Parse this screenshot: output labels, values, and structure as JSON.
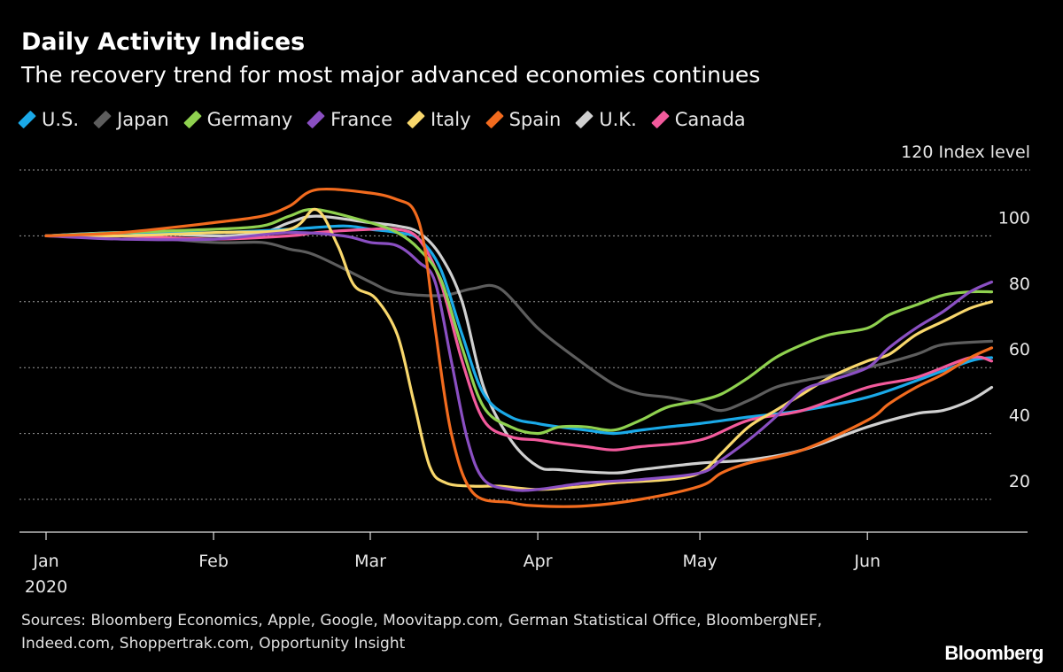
{
  "chart_data": {
    "type": "line",
    "title": "Daily Activity Indices",
    "subtitle": "The recovery trend for most major advanced economies continues",
    "ylabel": "Index level",
    "ylim": [
      10,
      120
    ],
    "yticks": [
      20,
      40,
      60,
      80,
      100,
      120
    ],
    "x_axis": {
      "range": [
        "2020-01-01",
        "2020-06-25"
      ],
      "ticks": [
        {
          "date": "2020-01-01",
          "label": "Jan"
        },
        {
          "date": "2020-02-01",
          "label": "Feb"
        },
        {
          "date": "2020-03-01",
          "label": "Mar"
        },
        {
          "date": "2020-04-01",
          "label": "Apr"
        },
        {
          "date": "2020-05-01",
          "label": "May"
        },
        {
          "date": "2020-06-01",
          "label": "Jun"
        }
      ],
      "year_label": "2020"
    },
    "grid": true,
    "legend_position": "top-left",
    "series": [
      {
        "name": "U.S.",
        "color": "#1aa9e8",
        "points": [
          [
            "2020-01-01",
            100
          ],
          [
            "2020-01-15",
            101
          ],
          [
            "2020-02-01",
            101
          ],
          [
            "2020-02-15",
            102
          ],
          [
            "2020-02-25",
            103
          ],
          [
            "2020-03-01",
            102
          ],
          [
            "2020-03-06",
            101
          ],
          [
            "2020-03-10",
            99
          ],
          [
            "2020-03-14",
            90
          ],
          [
            "2020-03-18",
            70
          ],
          [
            "2020-03-22",
            52
          ],
          [
            "2020-03-27",
            45
          ],
          [
            "2020-04-01",
            43
          ],
          [
            "2020-04-05",
            42
          ],
          [
            "2020-04-10",
            41
          ],
          [
            "2020-04-15",
            40
          ],
          [
            "2020-04-20",
            41
          ],
          [
            "2020-04-25",
            42
          ],
          [
            "2020-05-01",
            43
          ],
          [
            "2020-05-10",
            45
          ],
          [
            "2020-05-20",
            47
          ],
          [
            "2020-06-01",
            51
          ],
          [
            "2020-06-10",
            56
          ],
          [
            "2020-06-20",
            62
          ],
          [
            "2020-06-24",
            63
          ]
        ]
      },
      {
        "name": "Japan",
        "color": "#5d5d5d",
        "points": [
          [
            "2020-01-01",
            100
          ],
          [
            "2020-01-15",
            100
          ],
          [
            "2020-02-01",
            98
          ],
          [
            "2020-02-10",
            98
          ],
          [
            "2020-02-15",
            96
          ],
          [
            "2020-02-20",
            94
          ],
          [
            "2020-03-01",
            86
          ],
          [
            "2020-03-05",
            83
          ],
          [
            "2020-03-10",
            82
          ],
          [
            "2020-03-15",
            82
          ],
          [
            "2020-03-20",
            84
          ],
          [
            "2020-03-25",
            84
          ],
          [
            "2020-04-01",
            72
          ],
          [
            "2020-04-08",
            63
          ],
          [
            "2020-04-15",
            55
          ],
          [
            "2020-04-20",
            52
          ],
          [
            "2020-04-25",
            51
          ],
          [
            "2020-05-01",
            49
          ],
          [
            "2020-05-05",
            47
          ],
          [
            "2020-05-10",
            50
          ],
          [
            "2020-05-15",
            54
          ],
          [
            "2020-05-20",
            56
          ],
          [
            "2020-06-01",
            60
          ],
          [
            "2020-06-10",
            64
          ],
          [
            "2020-06-15",
            67
          ],
          [
            "2020-06-24",
            68
          ]
        ]
      },
      {
        "name": "Germany",
        "color": "#8fd14f",
        "points": [
          [
            "2020-01-01",
            100
          ],
          [
            "2020-01-15",
            101
          ],
          [
            "2020-02-01",
            102
          ],
          [
            "2020-02-10",
            103
          ],
          [
            "2020-02-15",
            106
          ],
          [
            "2020-02-20",
            108
          ],
          [
            "2020-03-01",
            104
          ],
          [
            "2020-03-06",
            101
          ],
          [
            "2020-03-10",
            96
          ],
          [
            "2020-03-14",
            87
          ],
          [
            "2020-03-18",
            66
          ],
          [
            "2020-03-22",
            48
          ],
          [
            "2020-03-27",
            42
          ],
          [
            "2020-04-01",
            40
          ],
          [
            "2020-04-05",
            42
          ],
          [
            "2020-04-10",
            42
          ],
          [
            "2020-04-15",
            41
          ],
          [
            "2020-04-20",
            44
          ],
          [
            "2020-04-25",
            48
          ],
          [
            "2020-05-01",
            50
          ],
          [
            "2020-05-05",
            52
          ],
          [
            "2020-05-10",
            57
          ],
          [
            "2020-05-15",
            63
          ],
          [
            "2020-05-20",
            67
          ],
          [
            "2020-05-25",
            70
          ],
          [
            "2020-06-01",
            72
          ],
          [
            "2020-06-05",
            76
          ],
          [
            "2020-06-10",
            79
          ],
          [
            "2020-06-15",
            82
          ],
          [
            "2020-06-20",
            83
          ],
          [
            "2020-06-24",
            83
          ]
        ]
      },
      {
        "name": "France",
        "color": "#8a4fc2",
        "points": [
          [
            "2020-01-01",
            100
          ],
          [
            "2020-01-15",
            99
          ],
          [
            "2020-02-01",
            99
          ],
          [
            "2020-02-15",
            101
          ],
          [
            "2020-02-25",
            100
          ],
          [
            "2020-03-01",
            98
          ],
          [
            "2020-03-06",
            97
          ],
          [
            "2020-03-10",
            92
          ],
          [
            "2020-03-13",
            86
          ],
          [
            "2020-03-16",
            62
          ],
          [
            "2020-03-19",
            38
          ],
          [
            "2020-03-22",
            26
          ],
          [
            "2020-03-27",
            23
          ],
          [
            "2020-04-01",
            23
          ],
          [
            "2020-04-10",
            25
          ],
          [
            "2020-04-20",
            26
          ],
          [
            "2020-05-01",
            28
          ],
          [
            "2020-05-05",
            32
          ],
          [
            "2020-05-10",
            38
          ],
          [
            "2020-05-15",
            45
          ],
          [
            "2020-05-20",
            53
          ],
          [
            "2020-05-25",
            56
          ],
          [
            "2020-06-01",
            60
          ],
          [
            "2020-06-05",
            66
          ],
          [
            "2020-06-10",
            72
          ],
          [
            "2020-06-15",
            77
          ],
          [
            "2020-06-20",
            83
          ],
          [
            "2020-06-24",
            86
          ]
        ]
      },
      {
        "name": "Italy",
        "color": "#f8d76c",
        "points": [
          [
            "2020-01-01",
            100
          ],
          [
            "2020-01-15",
            100
          ],
          [
            "2020-02-01",
            101
          ],
          [
            "2020-02-15",
            102
          ],
          [
            "2020-02-20",
            108
          ],
          [
            "2020-02-24",
            97
          ],
          [
            "2020-02-27",
            85
          ],
          [
            "2020-03-02",
            81
          ],
          [
            "2020-03-06",
            70
          ],
          [
            "2020-03-09",
            50
          ],
          [
            "2020-03-12",
            30
          ],
          [
            "2020-03-15",
            25
          ],
          [
            "2020-03-20",
            24
          ],
          [
            "2020-03-25",
            24
          ],
          [
            "2020-04-01",
            23
          ],
          [
            "2020-04-10",
            24
          ],
          [
            "2020-04-15",
            25
          ],
          [
            "2020-04-25",
            26
          ],
          [
            "2020-05-01",
            28
          ],
          [
            "2020-05-05",
            34
          ],
          [
            "2020-05-10",
            42
          ],
          [
            "2020-05-15",
            47
          ],
          [
            "2020-05-20",
            52
          ],
          [
            "2020-05-25",
            57
          ],
          [
            "2020-06-01",
            62
          ],
          [
            "2020-06-05",
            64
          ],
          [
            "2020-06-10",
            70
          ],
          [
            "2020-06-15",
            74
          ],
          [
            "2020-06-20",
            78
          ],
          [
            "2020-06-24",
            80
          ]
        ]
      },
      {
        "name": "Spain",
        "color": "#f26b1e",
        "points": [
          [
            "2020-01-01",
            100
          ],
          [
            "2020-01-15",
            101
          ],
          [
            "2020-02-01",
            104
          ],
          [
            "2020-02-10",
            106
          ],
          [
            "2020-02-15",
            109
          ],
          [
            "2020-02-20",
            114
          ],
          [
            "2020-03-01",
            113
          ],
          [
            "2020-03-06",
            111
          ],
          [
            "2020-03-09",
            108
          ],
          [
            "2020-03-11",
            97
          ],
          [
            "2020-03-13",
            72
          ],
          [
            "2020-03-16",
            40
          ],
          [
            "2020-03-20",
            22
          ],
          [
            "2020-03-27",
            19
          ],
          [
            "2020-04-01",
            18
          ],
          [
            "2020-04-10",
            18
          ],
          [
            "2020-04-20",
            20
          ],
          [
            "2020-05-01",
            24
          ],
          [
            "2020-05-05",
            28
          ],
          [
            "2020-05-10",
            31
          ],
          [
            "2020-05-20",
            35
          ],
          [
            "2020-06-01",
            44
          ],
          [
            "2020-06-05",
            49
          ],
          [
            "2020-06-10",
            54
          ],
          [
            "2020-06-15",
            58
          ],
          [
            "2020-06-20",
            63
          ],
          [
            "2020-06-24",
            66
          ]
        ]
      },
      {
        "name": "U.K.",
        "color": "#d0d0d0",
        "points": [
          [
            "2020-01-01",
            100
          ],
          [
            "2020-01-15",
            101
          ],
          [
            "2020-02-01",
            100
          ],
          [
            "2020-02-10",
            101
          ],
          [
            "2020-02-15",
            104
          ],
          [
            "2020-02-20",
            106
          ],
          [
            "2020-03-01",
            104
          ],
          [
            "2020-03-06",
            103
          ],
          [
            "2020-03-10",
            101
          ],
          [
            "2020-03-14",
            94
          ],
          [
            "2020-03-18",
            80
          ],
          [
            "2020-03-22",
            54
          ],
          [
            "2020-03-27",
            38
          ],
          [
            "2020-04-01",
            30
          ],
          [
            "2020-04-05",
            29
          ],
          [
            "2020-04-15",
            28
          ],
          [
            "2020-04-20",
            29
          ],
          [
            "2020-05-01",
            31
          ],
          [
            "2020-05-10",
            32
          ],
          [
            "2020-05-20",
            35
          ],
          [
            "2020-06-01",
            42
          ],
          [
            "2020-06-10",
            46
          ],
          [
            "2020-06-15",
            47
          ],
          [
            "2020-06-20",
            50
          ],
          [
            "2020-06-24",
            54
          ]
        ]
      },
      {
        "name": "Canada",
        "color": "#f25a9c",
        "points": [
          [
            "2020-01-01",
            100
          ],
          [
            "2020-01-15",
            100
          ],
          [
            "2020-02-01",
            99
          ],
          [
            "2020-02-15",
            100
          ],
          [
            "2020-02-20",
            101
          ],
          [
            "2020-03-01",
            102
          ],
          [
            "2020-03-06",
            102
          ],
          [
            "2020-03-10",
            99
          ],
          [
            "2020-03-14",
            86
          ],
          [
            "2020-03-18",
            62
          ],
          [
            "2020-03-22",
            44
          ],
          [
            "2020-03-27",
            39
          ],
          [
            "2020-04-01",
            38
          ],
          [
            "2020-04-05",
            37
          ],
          [
            "2020-04-10",
            36
          ],
          [
            "2020-04-15",
            35
          ],
          [
            "2020-04-20",
            36
          ],
          [
            "2020-05-01",
            38
          ],
          [
            "2020-05-10",
            44
          ],
          [
            "2020-05-20",
            47
          ],
          [
            "2020-06-01",
            54
          ],
          [
            "2020-06-10",
            57
          ],
          [
            "2020-06-20",
            63
          ],
          [
            "2020-06-24",
            62
          ]
        ]
      }
    ],
    "sources": "Sources: Bloomberg Economics, Apple, Google, Moovitapp.com, German Statistical Office, BloombergNEF, Indeed.com, Shoppertrak.com, Opportunity Insight",
    "brand": "Bloomberg"
  }
}
